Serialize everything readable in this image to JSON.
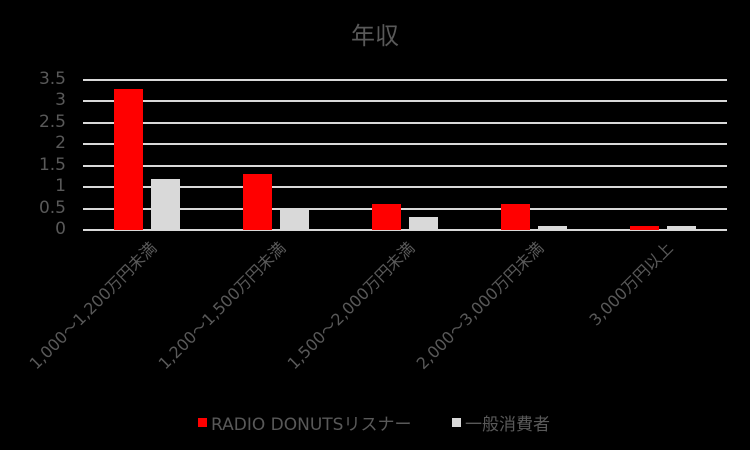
{
  "chart_data": {
    "type": "bar",
    "title": "年収",
    "xlabel": "",
    "ylabel": "",
    "ylim": [
      0,
      3.5
    ],
    "yticks": [
      "0",
      "0.5",
      "1",
      "1.5",
      "2",
      "2.5",
      "3",
      "3.5"
    ],
    "grid": true,
    "legend_position": "bottom",
    "categories": [
      "1,000～1,200万円未満",
      "1,200～1,500万円未満",
      "1,500～2,000万円未満",
      "2,000～3,000万円未満",
      "3,000万円以上"
    ],
    "series": [
      {
        "name": "RADIO DONUTSリスナー",
        "color": "#ff0000",
        "values": [
          3.3,
          1.3,
          0.6,
          0.6,
          0.1
        ]
      },
      {
        "name": "一般消費者",
        "color": "#d9d9d9",
        "values": [
          1.2,
          0.5,
          0.3,
          0.1,
          0.1
        ]
      }
    ]
  },
  "colors": {
    "background": "#000000",
    "text": "#595959",
    "grid": "#d9d9d9"
  }
}
